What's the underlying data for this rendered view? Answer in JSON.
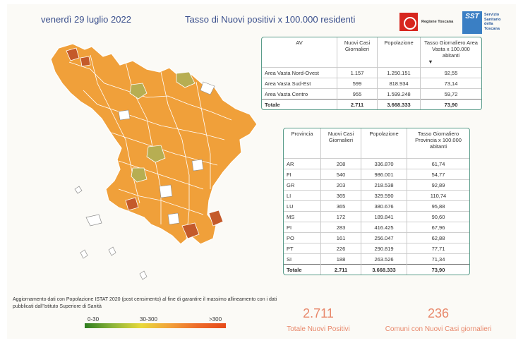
{
  "header": {
    "date": "venerdì 29 luglio 2022",
    "title": "Tasso di Nuovi positivi x 100.000 residenti",
    "logo_regione": "Regione Toscana",
    "logo_sst_abbr": "SST",
    "logo_sst_text": [
      "Servizio",
      "Sanitario",
      "della",
      "Toscana"
    ]
  },
  "av_table": {
    "headers": [
      "AV",
      "Nuovi Casi Giornalieri",
      "Popolazione",
      "Tasso Giornaliero Area Vasta x 100.000 abitanti"
    ],
    "sort_indicator": "▼",
    "rows": [
      [
        "Area Vasta Nord-Ovest",
        "1.157",
        "1.250.151",
        "92,55"
      ],
      [
        "Area Vasta Sud-Est",
        "599",
        "818.934",
        "73,14"
      ],
      [
        "Area Vasta Centro",
        "955",
        "1.599.248",
        "59,72"
      ]
    ],
    "total": [
      "Totale",
      "2.711",
      "3.668.333",
      "73,90"
    ]
  },
  "prov_table": {
    "headers": [
      "Provincia",
      "Nuovi Casi Giornalieri",
      "Popolazione",
      "Tasso Giornaliero Provincia x 100.000 abitanti"
    ],
    "rows": [
      [
        "AR",
        "208",
        "336.870",
        "61,74"
      ],
      [
        "FI",
        "540",
        "986.001",
        "54,77"
      ],
      [
        "GR",
        "203",
        "218.538",
        "92,89"
      ],
      [
        "LI",
        "365",
        "329.590",
        "110,74"
      ],
      [
        "LU",
        "365",
        "380.676",
        "95,88"
      ],
      [
        "MS",
        "172",
        "189.841",
        "90,60"
      ],
      [
        "PI",
        "283",
        "416.425",
        "67,96"
      ],
      [
        "PO",
        "161",
        "256.047",
        "62,88"
      ],
      [
        "PT",
        "226",
        "290.819",
        "77,71"
      ],
      [
        "SI",
        "188",
        "263.526",
        "71,34"
      ]
    ],
    "total": [
      "Totale",
      "2.711",
      "3.668.333",
      "73,90"
    ]
  },
  "note": "Aggiornamento dati con Popolazione ISTAT 2020 (post censimento) al fine di garantire il massimo allineamento con i dati pubblicati dall'Istituto Superiore di Sanità",
  "legend": {
    "low": "0-30",
    "mid": "30-300",
    "high": ">300"
  },
  "kpis": {
    "total_value": "2.711",
    "total_label": "Totale Nuovi Positivi",
    "comuni_value": "236",
    "comuni_label": "Comuni con Nuovi Casi giornalieri"
  },
  "colors": {
    "accent_text": "#3a4f8c",
    "kpi": "#e8876a",
    "table_border": "#5a9c8a",
    "map_fill": "#f0a03a"
  }
}
